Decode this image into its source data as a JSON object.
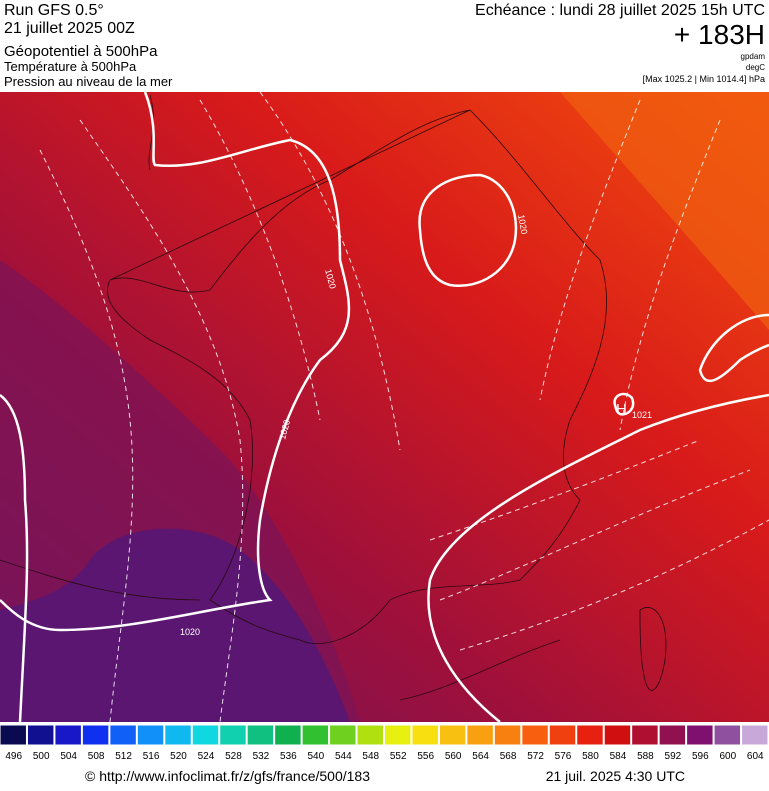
{
  "header": {
    "run": "Run GFS 0.5°",
    "date": "21 juillet 2025 00Z",
    "field": "Géopotentiel à 500hPa",
    "temperature": "Température à 500hPa",
    "pressure": "Pression au niveau de la mer",
    "echeance": "Echéance : lundi 28 juillet 2025 15h UTC",
    "offset": "+ 183H",
    "unit_geo": "gpdam",
    "unit_temp": "degC",
    "range": "[Max 1025.2 | Min 1014.4] hPa"
  },
  "map": {
    "isobar_labels": [
      "1020",
      "1020",
      "1020",
      "1020",
      "1021"
    ],
    "high": "H"
  },
  "colorbar": {
    "labels": [
      496,
      500,
      504,
      508,
      512,
      516,
      520,
      524,
      528,
      532,
      536,
      540,
      544,
      548,
      552,
      556,
      560,
      564,
      568,
      572,
      576,
      580,
      584,
      588,
      592,
      596,
      600,
      604
    ]
  },
  "footer": {
    "url": "© http://www.infoclimat.fr/z/gfs/france/500/183",
    "timestamp": "21 juil. 2025  4:30 UTC"
  }
}
